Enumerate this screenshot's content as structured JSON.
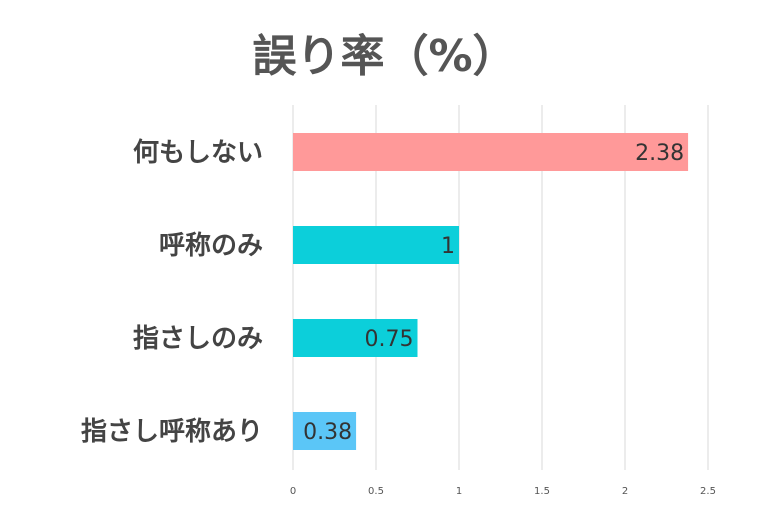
{
  "chart_data": {
    "type": "bar",
    "orientation": "horizontal",
    "title": "誤り率（%）",
    "categories": [
      "何もしない",
      "呼称のみ",
      "指さしのみ",
      "指さし呼称あり"
    ],
    "values": [
      2.38,
      1,
      0.75,
      0.38
    ],
    "data_labels": [
      "2.38",
      "1",
      "0.75",
      "0.38"
    ],
    "colors": [
      "#ff9999",
      "#0ccfda",
      "#0ccfda",
      "#5bc6f7"
    ],
    "xlim": [
      0,
      2.5
    ],
    "x_ticks": [
      0,
      0.5,
      1,
      1.5,
      2,
      2.5
    ],
    "x_tick_labels": [
      "0",
      "0.5",
      "1",
      "1.5",
      "2",
      "2.5"
    ],
    "grid": true,
    "legend": "none"
  }
}
